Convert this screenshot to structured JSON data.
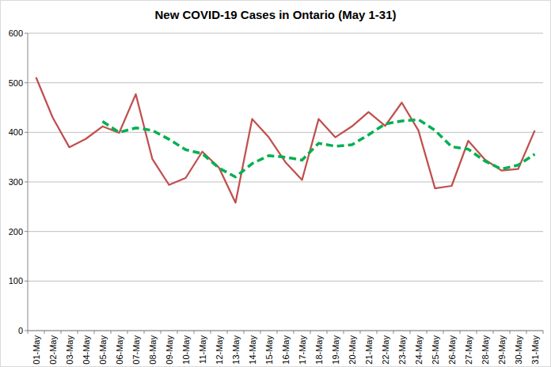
{
  "chart_data": {
    "type": "line",
    "title": "New COVID-19 Cases in Ontario (May 1-31)",
    "categories": [
      "01-May",
      "02-May",
      "03-May",
      "04-May",
      "05-May",
      "06-May",
      "07-May",
      "08-May",
      "09-May",
      "10-May",
      "11-May",
      "12-May",
      "13-May",
      "14-May",
      "15-May",
      "16-May",
      "17-May",
      "18-May",
      "19-May",
      "20-May",
      "21-May",
      "22-May",
      "23-May",
      "24-May",
      "25-May",
      "26-May",
      "27-May",
      "28-May",
      "29-May",
      "30-May",
      "31-May"
    ],
    "series": [
      {
        "color": "#c0504d",
        "line_style": "solid",
        "values": [
          511,
          430,
          370,
          387,
          412,
          399,
          477,
          346,
          294,
          308,
          361,
          329,
          258,
          427,
          390,
          340,
          304,
          427,
          390,
          412,
          441,
          413,
          460,
          404,
          287,
          292,
          383,
          345,
          323,
          326,
          404
        ]
      },
      {
        "color": "#00b050",
        "line_style": "dashed",
        "values": [
          null,
          null,
          null,
          null,
          422,
          400,
          409,
          404,
          386,
          365,
          357,
          328,
          310,
          337,
          353,
          350,
          344,
          378,
          372,
          375,
          395,
          417,
          423,
          426,
          404,
          371,
          366,
          342,
          326,
          334,
          356
        ]
      }
    ],
    "ylim": [
      0,
      600
    ],
    "yticks": [
      0,
      100,
      200,
      300,
      400,
      500,
      600
    ],
    "grid": true
  }
}
